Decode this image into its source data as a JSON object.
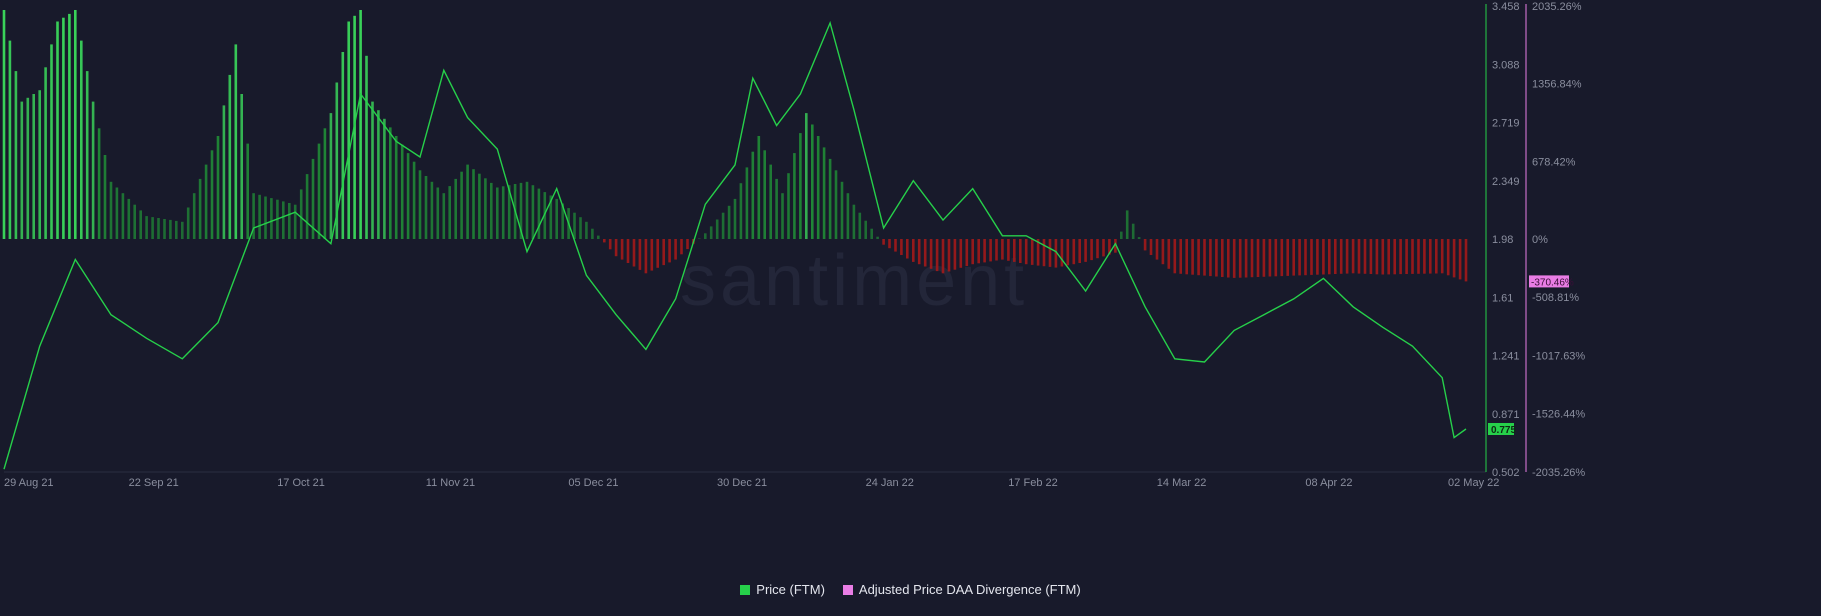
{
  "chart_data": {
    "type": "line",
    "watermark": "santiment",
    "x_ticks": [
      "29 Aug 21",
      "22 Sep 21",
      "17 Oct 21",
      "11 Nov 21",
      "05 Dec 21",
      "30 Dec 21",
      "24 Jan 22",
      "17 Feb 22",
      "14 Mar 22",
      "08 Apr 22",
      "02 May 22"
    ],
    "left_axis": {
      "ylim": [
        0.502,
        3.458
      ],
      "ticks": [
        "3.458",
        "3.088",
        "2.719",
        "2.349",
        "1.98",
        "1.61",
        "1.241",
        "0.871",
        "0.502"
      ]
    },
    "right_axis": {
      "ylim": [
        -2035.26,
        2035.26
      ],
      "ticks": [
        "2035.26%",
        "1356.84%",
        "678.42%",
        "0%",
        "-508.81%",
        "-1017.63%",
        "-1526.44%",
        "-2035.26%"
      ]
    },
    "current_price_label": "0.775",
    "current_divergence_label": "-370.46%",
    "colors": {
      "price": "#26d04a",
      "divergence": "#e97de5",
      "positive_bar": "#22a63a",
      "negative_bar": "#a31a1a",
      "background": "#181a2b"
    },
    "series": [
      {
        "name": "Price (FTM)",
        "axis": "left",
        "x": [
          "29 Aug 21",
          "04 Sep 21",
          "10 Sep 21",
          "16 Sep 21",
          "22 Sep 21",
          "28 Sep 21",
          "04 Oct 21",
          "10 Oct 21",
          "17 Oct 21",
          "23 Oct 21",
          "28 Oct 21",
          "03 Nov 21",
          "07 Nov 21",
          "11 Nov 21",
          "15 Nov 21",
          "20 Nov 21",
          "25 Nov 21",
          "30 Nov 21",
          "05 Dec 21",
          "10 Dec 21",
          "15 Dec 21",
          "20 Dec 21",
          "25 Dec 21",
          "30 Dec 21",
          "02 Jan 22",
          "06 Jan 22",
          "10 Jan 22",
          "15 Jan 22",
          "19 Jan 22",
          "24 Jan 22",
          "29 Jan 22",
          "03 Feb 22",
          "08 Feb 22",
          "13 Feb 22",
          "17 Feb 22",
          "22 Feb 22",
          "27 Feb 22",
          "04 Mar 22",
          "09 Mar 22",
          "14 Mar 22",
          "19 Mar 22",
          "24 Mar 22",
          "29 Mar 22",
          "03 Apr 22",
          "08 Apr 22",
          "13 Apr 22",
          "18 Apr 22",
          "23 Apr 22",
          "28 Apr 22",
          "30 Apr 22",
          "02 May 22"
        ],
        "values": [
          0.52,
          1.3,
          1.85,
          1.5,
          1.35,
          1.22,
          1.45,
          2.05,
          2.15,
          1.95,
          2.9,
          2.6,
          2.5,
          3.05,
          2.75,
          2.55,
          1.9,
          2.3,
          1.75,
          1.5,
          1.28,
          1.6,
          2.2,
          2.45,
          3.0,
          2.7,
          2.9,
          3.35,
          2.8,
          2.05,
          2.35,
          2.1,
          2.3,
          2.0,
          2.0,
          1.9,
          1.65,
          1.95,
          1.55,
          1.22,
          1.2,
          1.4,
          1.5,
          1.6,
          1.73,
          1.55,
          1.42,
          1.3,
          1.1,
          0.72,
          0.775
        ]
      },
      {
        "name": "Adjusted Price DAA Divergence (FTM)",
        "axis": "right",
        "x": [
          "29 Aug 21",
          "01 Sep 21",
          "04 Sep 21",
          "07 Sep 21",
          "10 Sep 21",
          "13 Sep 21",
          "16 Sep 21",
          "22 Sep 21",
          "28 Sep 21",
          "04 Oct 21",
          "07 Oct 21",
          "10 Oct 21",
          "17 Oct 21",
          "20 Oct 21",
          "23 Oct 21",
          "26 Oct 21",
          "28 Oct 21",
          "30 Oct 21",
          "03 Nov 21",
          "07 Nov 21",
          "11 Nov 21",
          "15 Nov 21",
          "20 Nov 21",
          "25 Nov 21",
          "30 Nov 21",
          "05 Dec 21",
          "10 Dec 21",
          "15 Dec 21",
          "20 Dec 21",
          "25 Dec 21",
          "30 Dec 21",
          "03 Jan 22",
          "07 Jan 22",
          "11 Jan 22",
          "15 Jan 22",
          "19 Jan 22",
          "24 Jan 22",
          "29 Jan 22",
          "03 Feb 22",
          "08 Feb 22",
          "13 Feb 22",
          "17 Feb 22",
          "22 Feb 22",
          "27 Feb 22",
          "04 Mar 22",
          "06 Mar 22",
          "09 Mar 22",
          "14 Mar 22",
          "19 Mar 22",
          "24 Mar 22",
          "29 Mar 22",
          "03 Apr 22",
          "08 Apr 22",
          "13 Apr 22",
          "18 Apr 22",
          "23 Apr 22",
          "28 Apr 22",
          "02 May 22"
        ],
        "values": [
          2000,
          1200,
          1300,
          1900,
          2000,
          1200,
          500,
          200,
          150,
          900,
          1700,
          400,
          300,
          700,
          1100,
          1900,
          2000,
          1200,
          900,
          600,
          400,
          650,
          450,
          500,
          350,
          150,
          -150,
          -300,
          -180,
          50,
          350,
          900,
          400,
          1100,
          700,
          300,
          -50,
          -200,
          -300,
          -220,
          -180,
          -220,
          -250,
          -200,
          -120,
          250,
          -100,
          -300,
          -320,
          -340,
          -330,
          -320,
          -310,
          -300,
          -310,
          -305,
          -300,
          -370
        ]
      }
    ]
  },
  "legend": [
    {
      "label": "Price (FTM)",
      "color": "#26d04a"
    },
    {
      "label": "Adjusted Price DAA Divergence (FTM)",
      "color": "#e97de5"
    }
  ]
}
